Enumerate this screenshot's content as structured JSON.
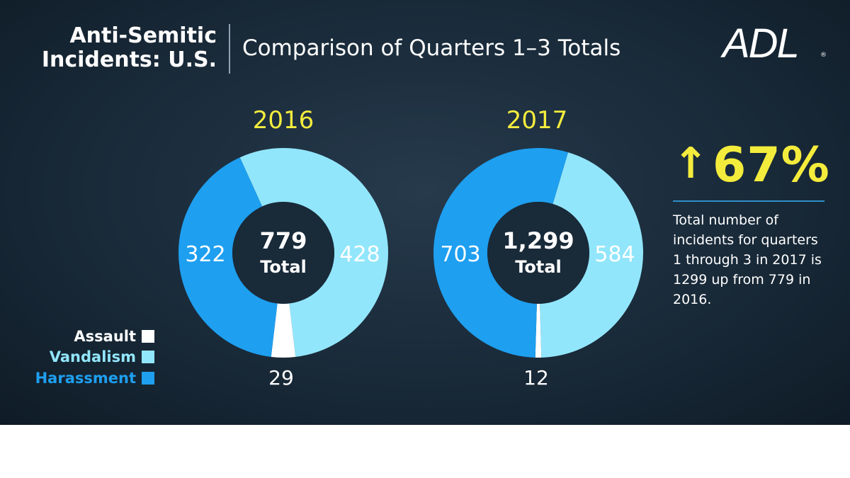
{
  "header": {
    "title": "Anti-Semitic Incidents: U.S.",
    "title_line1": "Anti-Semitic",
    "title_line2": "Incidents: U.S.",
    "subtitle": "Comparison of Quarters 1–3 Totals",
    "logo": "ADL",
    "logo_mark": "®"
  },
  "callout": {
    "change": "67%",
    "arrow": "↑",
    "description": "Total number of incidents for quarters 1 through 3 in 2017 is 1299 up from 779 in 2016."
  },
  "colors": {
    "assault": "#ffffff",
    "vandalism": "#92e6fb",
    "harassment": "#1e9ff0",
    "center": "#192a39",
    "year": "#f4ec3d"
  },
  "chart_data": {
    "type": "pie",
    "categories": [
      "Assault",
      "Vandalism",
      "Harassment"
    ],
    "legend": [
      {
        "label": "Assault",
        "color": "#ffffff"
      },
      {
        "label": "Vandalism",
        "color": "#92e6fb"
      },
      {
        "label": "Harassment",
        "color": "#1e9ff0"
      }
    ],
    "charts": [
      {
        "title": "2016",
        "total_label": "779",
        "total_word": "Total",
        "values": {
          "Assault": 29,
          "Vandalism": 428,
          "Harassment": 322
        },
        "labels": {
          "Assault": "29",
          "Vandalism": "428",
          "Harassment": "322"
        }
      },
      {
        "title": "2017",
        "total_label": "1,299",
        "total_word": "Total",
        "values": {
          "Assault": 12,
          "Vandalism": 584,
          "Harassment": 703
        },
        "labels": {
          "Assault": "12",
          "Vandalism": "584",
          "Harassment": "703"
        }
      }
    ]
  }
}
